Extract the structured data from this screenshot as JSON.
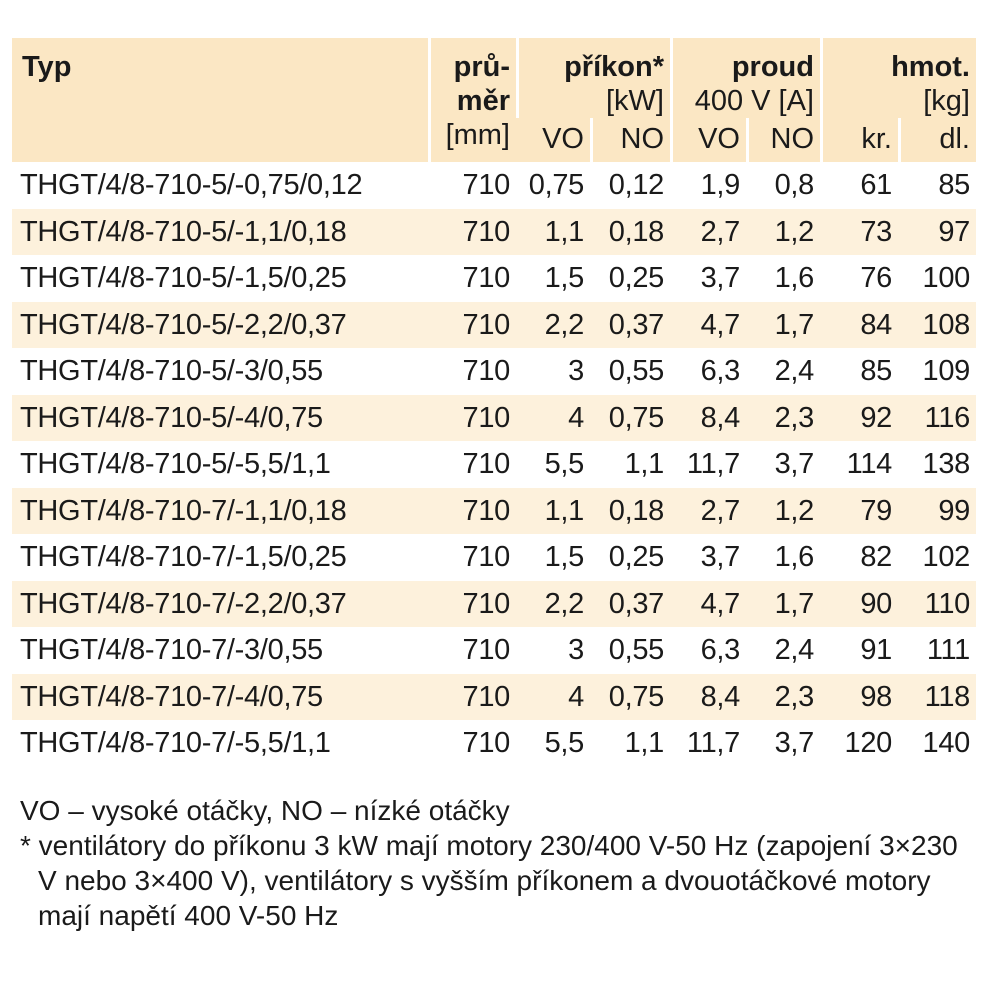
{
  "header": {
    "typ": "Typ",
    "prumer_l1": "prů-",
    "prumer_l2": "měr",
    "prumer_unit": "[mm]",
    "prikon": "příkon*",
    "prikon_unit": "[kW]",
    "proud": "proud",
    "proud_unit": "400 V [A]",
    "hmot": "hmot.",
    "hmot_unit": "[kg]",
    "vo": "VO",
    "no": "NO",
    "kr": "kr.",
    "dl": "dl."
  },
  "rows": [
    {
      "typ": "THGT/4/8-710-5/-0,75/0,12",
      "prumer": "710",
      "prikon_vo": "0,75",
      "prikon_no": "0,12",
      "proud_vo": "1,9",
      "proud_no": "0,8",
      "hmot_kr": "61",
      "hmot_dl": "85"
    },
    {
      "typ": "THGT/4/8-710-5/-1,1/0,18",
      "prumer": "710",
      "prikon_vo": "1,1",
      "prikon_no": "0,18",
      "proud_vo": "2,7",
      "proud_no": "1,2",
      "hmot_kr": "73",
      "hmot_dl": "97"
    },
    {
      "typ": "THGT/4/8-710-5/-1,5/0,25",
      "prumer": "710",
      "prikon_vo": "1,5",
      "prikon_no": "0,25",
      "proud_vo": "3,7",
      "proud_no": "1,6",
      "hmot_kr": "76",
      "hmot_dl": "100"
    },
    {
      "typ": "THGT/4/8-710-5/-2,2/0,37",
      "prumer": "710",
      "prikon_vo": "2,2",
      "prikon_no": "0,37",
      "proud_vo": "4,7",
      "proud_no": "1,7",
      "hmot_kr": "84",
      "hmot_dl": "108"
    },
    {
      "typ": "THGT/4/8-710-5/-3/0,55",
      "prumer": "710",
      "prikon_vo": "3",
      "prikon_no": "0,55",
      "proud_vo": "6,3",
      "proud_no": "2,4",
      "hmot_kr": "85",
      "hmot_dl": "109"
    },
    {
      "typ": "THGT/4/8-710-5/-4/0,75",
      "prumer": "710",
      "prikon_vo": "4",
      "prikon_no": "0,75",
      "proud_vo": "8,4",
      "proud_no": "2,3",
      "hmot_kr": "92",
      "hmot_dl": "116"
    },
    {
      "typ": "THGT/4/8-710-5/-5,5/1,1",
      "prumer": "710",
      "prikon_vo": "5,5",
      "prikon_no": "1,1",
      "proud_vo": "11,7",
      "proud_no": "3,7",
      "hmot_kr": "114",
      "hmot_dl": "138"
    },
    {
      "typ": "THGT/4/8-710-7/-1,1/0,18",
      "prumer": "710",
      "prikon_vo": "1,1",
      "prikon_no": "0,18",
      "proud_vo": "2,7",
      "proud_no": "1,2",
      "hmot_kr": "79",
      "hmot_dl": "99"
    },
    {
      "typ": "THGT/4/8-710-7/-1,5/0,25",
      "prumer": "710",
      "prikon_vo": "1,5",
      "prikon_no": "0,25",
      "proud_vo": "3,7",
      "proud_no": "1,6",
      "hmot_kr": "82",
      "hmot_dl": "102"
    },
    {
      "typ": "THGT/4/8-710-7/-2,2/0,37",
      "prumer": "710",
      "prikon_vo": "2,2",
      "prikon_no": "0,37",
      "proud_vo": "4,7",
      "proud_no": "1,7",
      "hmot_kr": "90",
      "hmot_dl": "110"
    },
    {
      "typ": "THGT/4/8-710-7/-3/0,55",
      "prumer": "710",
      "prikon_vo": "3",
      "prikon_no": "0,55",
      "proud_vo": "6,3",
      "proud_no": "2,4",
      "hmot_kr": "91",
      "hmot_dl": "111"
    },
    {
      "typ": "THGT/4/8-710-7/-4/0,75",
      "prumer": "710",
      "prikon_vo": "4",
      "prikon_no": "0,75",
      "proud_vo": "8,4",
      "proud_no": "2,3",
      "hmot_kr": "98",
      "hmot_dl": "118"
    },
    {
      "typ": "THGT/4/8-710-7/-5,5/1,1",
      "prumer": "710",
      "prikon_vo": "5,5",
      "prikon_no": "1,1",
      "proud_vo": "11,7",
      "proud_no": "3,7",
      "hmot_kr": "120",
      "hmot_dl": "140"
    }
  ],
  "notes": {
    "legend": "VO – vysoké otáčky, NO – nízké otáčky",
    "footnote": "* ventilátory do příkonu 3 kW mají motory 230/400 V-50 Hz (zapojení 3×230 V nebo 3×400 V), ventilátory s vyšším příkonem a dvouotáčkové motory mají napětí 400 V-50 Hz"
  },
  "colors": {
    "header_bg": "#fbe7c4",
    "stripe_bg": "#fdf1dc",
    "text": "#1a1a1a"
  }
}
